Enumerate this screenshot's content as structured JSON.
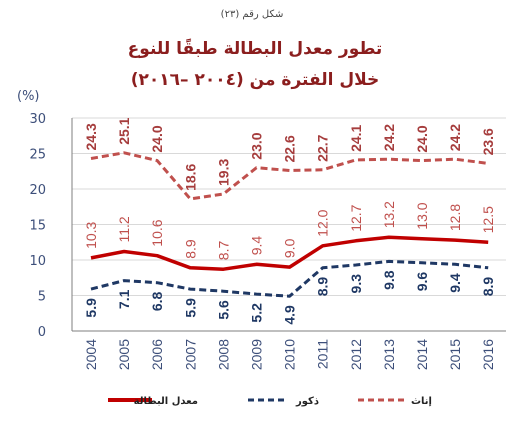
{
  "figure_number": "شكل رقم (٢٣)",
  "chart_data": {
    "type": "line",
    "title": "تطور معدل البطالة طبقًا للنوع",
    "subtitle": "خلال الفترة من (٢٠٠٤ –٢٠١٦)",
    "ylabel": "(%)",
    "xlabel": "",
    "ylim": [
      0,
      30
    ],
    "yticks": [
      "0",
      "5",
      "10",
      "15",
      "20",
      "25",
      "30"
    ],
    "x": [
      "2004",
      "2005",
      "2006",
      "2007",
      "2008",
      "2009",
      "2010",
      "2011",
      "2012",
      "2013",
      "2014",
      "2015",
      "2016"
    ],
    "grid": true,
    "legend": "bottom",
    "series": [
      {
        "key": "female",
        "name": "إناث",
        "color": "#c0504d",
        "style": "dashed",
        "values": [
          24.3,
          25.1,
          24.0,
          18.6,
          19.3,
          23.0,
          22.6,
          22.7,
          24.1,
          24.2,
          24.0,
          24.2,
          23.6
        ],
        "labels": [
          "24.3",
          "25.1",
          "24.0",
          "18.6",
          "19.3",
          "23.0",
          "22.6",
          "22.7",
          "24.1",
          "24.2",
          "24.0",
          "24.2",
          "23.6"
        ]
      },
      {
        "key": "total",
        "name": "معدل البطالة",
        "color": "#c00000",
        "style": "solid",
        "values": [
          10.3,
          11.2,
          10.6,
          8.9,
          8.7,
          9.4,
          9.0,
          12.0,
          12.7,
          13.2,
          13.0,
          12.8,
          12.5
        ],
        "labels": [
          "10.3",
          "11.2",
          "10.6",
          "8.9",
          "8.7",
          "9.4",
          "9.0",
          "12.0",
          "12.7",
          "13.2",
          "13.0",
          "12.8",
          "12.5"
        ]
      },
      {
        "key": "male",
        "name": "ذكور",
        "color": "#1f3864",
        "style": "dashed",
        "values": [
          5.9,
          7.1,
          6.8,
          5.9,
          5.6,
          5.2,
          4.9,
          8.9,
          9.3,
          9.8,
          9.6,
          9.4,
          8.9
        ],
        "labels": [
          "5.9",
          "7.1",
          "6.8",
          "5.9",
          "5.6",
          "5.2",
          "4.9",
          "8.9",
          "9.3",
          "9.8",
          "9.6",
          "9.4",
          "8.9"
        ]
      }
    ]
  }
}
